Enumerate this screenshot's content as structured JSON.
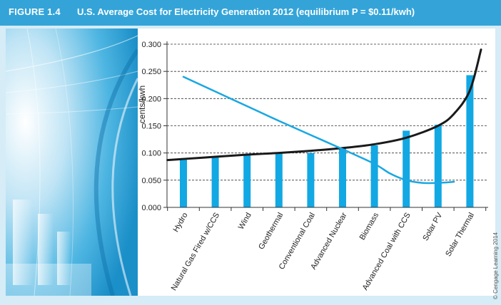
{
  "figure": {
    "label": "FIGURE 1.4",
    "title": "U.S. Average Cost for Electricity Generation 2012 (equilibrium P = $0.11/kwh)",
    "credit": "© Cengage Learning 2014"
  },
  "colors": {
    "title_bar": "#34a4d8",
    "panel": "#d6ecf6",
    "bar": "#12a8e4",
    "cost_curve": "#1a1a1a",
    "demand_curve": "#19a7e2"
  },
  "chart_data": {
    "type": "bar",
    "ylabel": "cents/kwh",
    "ylim": [
      0,
      0.3
    ],
    "yticks": [
      "0.000",
      "0.050",
      "0.100",
      "0.150",
      "0.200",
      "0.250",
      "0.300"
    ],
    "grid": true,
    "categories": [
      "Hydro",
      "Natural Gas Fired w/CCS",
      "Wind",
      "Geothermal",
      "Conventional Coal",
      "Advanced Nuclear",
      "Biomass",
      "Advanced Coal with CCS",
      "Solar PV",
      "Solar Thermal"
    ],
    "values": [
      0.089,
      0.093,
      0.097,
      0.099,
      0.1,
      0.108,
      0.114,
      0.141,
      0.152,
      0.243
    ],
    "curves": [
      {
        "x": [
          -0.5,
          0,
          1,
          2,
          3,
          4,
          5,
          6,
          7,
          8,
          8.5,
          9,
          9.35
        ],
        "y": [
          0.087,
          0.089,
          0.093,
          0.097,
          0.1,
          0.104,
          0.109,
          0.116,
          0.128,
          0.15,
          0.172,
          0.215,
          0.29
        ]
      },
      {
        "x": [
          0,
          1,
          2,
          3,
          4,
          5,
          6,
          6.5,
          7,
          7.5,
          8,
          8.5
        ],
        "y": [
          0.24,
          0.213,
          0.186,
          0.159,
          0.133,
          0.107,
          0.08,
          0.062,
          0.05,
          0.045,
          0.045,
          0.047
        ]
      }
    ]
  }
}
